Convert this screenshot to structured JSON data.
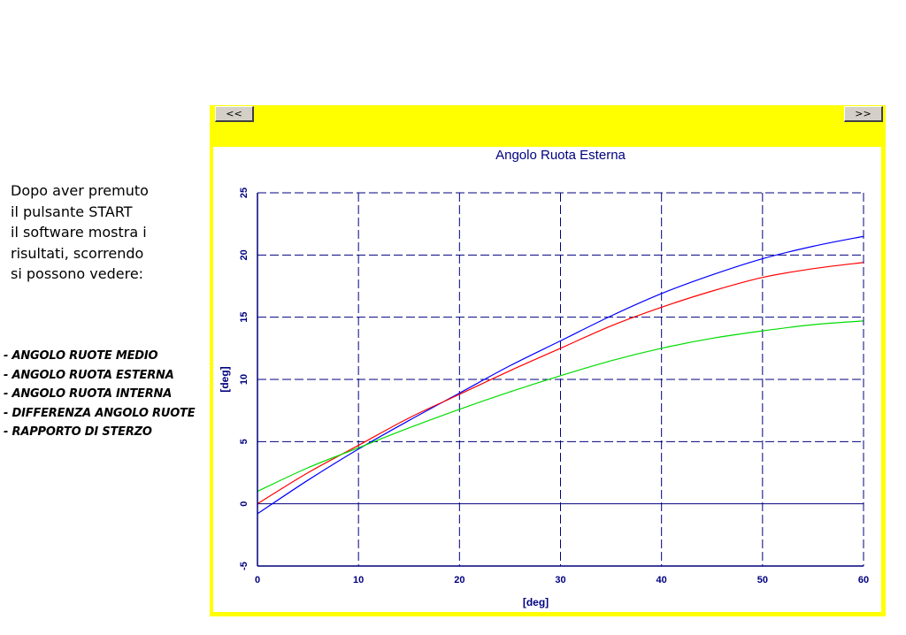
{
  "intro": {
    "lines": [
      "Dopo aver premuto",
      "il pulsante START",
      "il software mostra i",
      "risultati, scorrendo",
      "si possono vedere:"
    ]
  },
  "results_list": [
    "- ANGOLO RUOTE MEDIO",
    "- ANGOLO RUOTA ESTERNA",
    "- ANGOLO RUOTA INTERNA",
    "- DIFFERENZA ANGOLO RUOTE",
    "- RAPPORTO DI STERZO"
  ],
  "toolbar": {
    "prev_label": "<<",
    "next_label": ">>"
  },
  "colors": {
    "window_bg": "#ffff00",
    "axis": "#000080",
    "grid": "#000080",
    "title": "#000080"
  },
  "chart_data": {
    "type": "line",
    "title": "Angolo Ruota Esterna",
    "xlabel": "[deg]",
    "ylabel": "[deg]",
    "xlim": [
      0,
      60
    ],
    "ylim": [
      -5,
      25
    ],
    "xticks": [
      0,
      10,
      20,
      30,
      40,
      50,
      60
    ],
    "yticks": [
      -5,
      0,
      5,
      10,
      15,
      20,
      25
    ],
    "grid": true,
    "legend": "none",
    "x": [
      0,
      5,
      10,
      15,
      20,
      25,
      30,
      35,
      40,
      45,
      50,
      55,
      60
    ],
    "series": [
      {
        "color": "#0000ff",
        "values": [
          -0.8,
          1.9,
          4.4,
          6.7,
          8.9,
          11.1,
          13.1,
          15.1,
          16.9,
          18.4,
          19.7,
          20.7,
          21.5
        ]
      },
      {
        "color": "#ff0000",
        "values": [
          0.0,
          2.5,
          4.7,
          6.9,
          8.8,
          10.7,
          12.5,
          14.3,
          15.8,
          17.1,
          18.2,
          18.9,
          19.4
        ]
      },
      {
        "color": "#00dd00",
        "values": [
          1.0,
          2.9,
          4.5,
          6.1,
          7.6,
          9.0,
          10.3,
          11.5,
          12.5,
          13.3,
          13.9,
          14.4,
          14.7
        ]
      }
    ]
  }
}
